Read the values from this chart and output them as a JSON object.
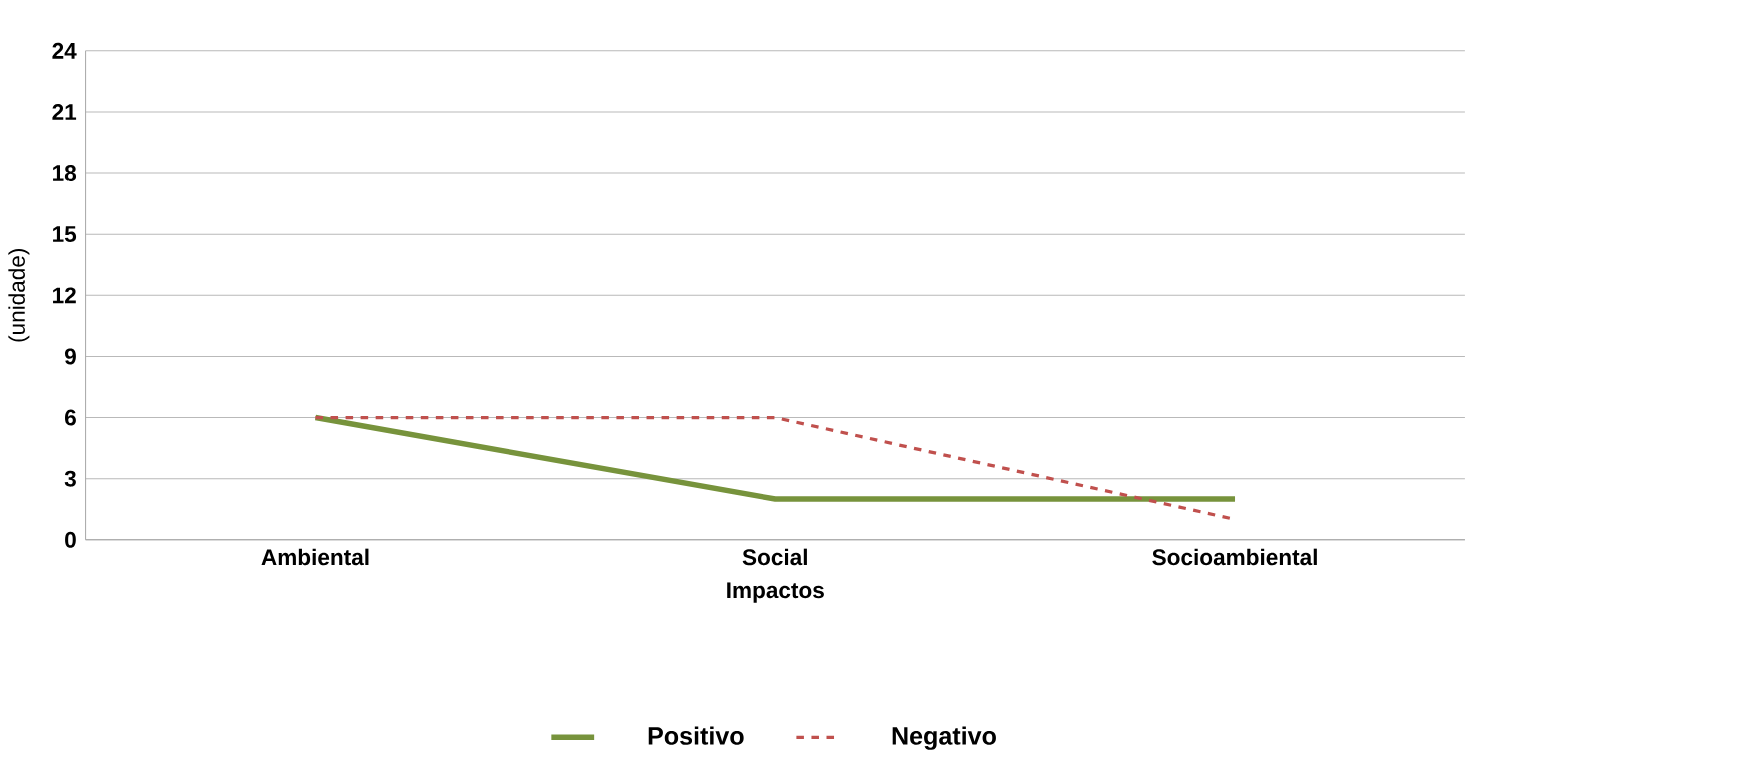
{
  "chart_data": {
    "type": "line",
    "xlabel": "Impactos",
    "ylabel": "(unidade)",
    "categories": [
      "Ambiental",
      "Social",
      "Socioambiental"
    ],
    "series": [
      {
        "name": "Positivo",
        "color": "#77933c",
        "values": [
          6,
          2,
          2
        ],
        "line_style": "solid"
      },
      {
        "name": "Negativo",
        "color": "#c0504d",
        "values": [
          6,
          6,
          1
        ],
        "line_style": "dashed"
      }
    ],
    "ylim": [
      0,
      24
    ],
    "yticks": [
      0,
      3,
      6,
      9,
      12,
      15,
      18,
      21,
      24
    ],
    "grid": "y",
    "legend": "bottom",
    "marker": "none"
  }
}
